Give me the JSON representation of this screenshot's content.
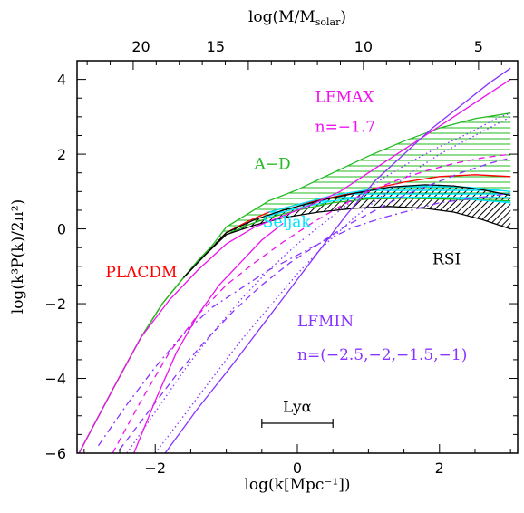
{
  "chart_data": {
    "type": "line",
    "xlabel": "log(k[Mpc⁻¹])",
    "ylabel": "log(k³P(k)/2π²)",
    "top_xlabel": "log(M/M_solar)",
    "xlim": [
      -3.1,
      3.1
    ],
    "ylim": [
      -6,
      4.5
    ],
    "x_ticks": [
      -2,
      0,
      2
    ],
    "y_ticks": [
      -6,
      -4,
      -2,
      0,
      2,
      4
    ],
    "top_ticks": [
      {
        "label": "20",
        "x": -2.2
      },
      {
        "label": "15",
        "x": -1.15
      },
      {
        "label": "10",
        "x": 0.93
      },
      {
        "label": "5",
        "x": 2.55
      }
    ],
    "grid": false,
    "colors": {
      "red": "#ff0000",
      "green": "#22bb22",
      "magenta": "#ee11ee",
      "purple": "#8833ff",
      "brown": "#bb4400",
      "cyan": "#00e5ff",
      "black": "#000000"
    },
    "annotations": [
      {
        "id": "plcdm",
        "text": "PLΛCDM",
        "color": "red"
      },
      {
        "id": "ad",
        "text": "A−D",
        "color": "green"
      },
      {
        "id": "lfmax",
        "text": "LFMAX",
        "color": "magenta"
      },
      {
        "id": "lfmax_n",
        "text": "n=−1.7",
        "color": "magenta"
      },
      {
        "id": "seljak",
        "text": "Seljak",
        "color": "cyan"
      },
      {
        "id": "rsi",
        "text": "RSI",
        "color": "black"
      },
      {
        "id": "lfmin",
        "text": "LFMIN",
        "color": "purple"
      },
      {
        "id": "lfmin_n",
        "text": "n=(−2.5,−2,−1.5,−1)",
        "color": "purple"
      },
      {
        "id": "lya",
        "text": "Lyα",
        "color": "black"
      }
    ],
    "lya_range": [
      -0.5,
      0.5,
      -5.2
    ],
    "series": [
      {
        "id": "plcdm_red",
        "color": "red",
        "style": "solid",
        "x": [
          -3.1,
          -2.6,
          -2.2,
          -1.9,
          -1.6,
          -1.4,
          -1.2,
          -1.0,
          -0.7,
          -0.4,
          0,
          0.5,
          1.0,
          1.5,
          2.0,
          2.5,
          3.0
        ],
        "y": [
          -6.1,
          -4.3,
          -2.9,
          -2.0,
          -1.3,
          -0.85,
          -0.5,
          -0.1,
          0.2,
          0.45,
          0.65,
          0.85,
          1.05,
          1.25,
          1.4,
          1.45,
          1.4
        ]
      },
      {
        "id": "ad_upper",
        "color": "green",
        "style": "solid",
        "x": [
          -3.1,
          -2.6,
          -2.2,
          -1.9,
          -1.6,
          -1.4,
          -1.2,
          -1.0,
          -0.7,
          -0.4,
          0,
          0.5,
          1.0,
          1.5,
          2.0,
          2.5,
          3.0
        ],
        "y": [
          -6.1,
          -4.3,
          -2.9,
          -2.0,
          -1.3,
          -0.85,
          -0.45,
          0.05,
          0.4,
          0.75,
          1.05,
          1.5,
          1.95,
          2.35,
          2.7,
          2.95,
          3.1
        ]
      },
      {
        "id": "ad_lower",
        "color": "green",
        "style": "solid",
        "x": [
          -3.1,
          -2.6,
          -2.2,
          -1.9,
          -1.6,
          -1.4,
          -1.2,
          -1.0,
          -0.7,
          -0.4,
          0,
          0.5,
          1.0,
          1.5,
          2.0,
          2.5,
          3.0
        ],
        "y": [
          -6.1,
          -4.3,
          -2.9,
          -2.0,
          -1.3,
          -0.85,
          -0.5,
          -0.15,
          0.1,
          0.3,
          0.5,
          0.7,
          0.8,
          0.82,
          0.8,
          0.78,
          0.75
        ]
      },
      {
        "id": "seljak_upper",
        "color": "cyan",
        "style": "solid",
        "x": [
          -0.4,
          0,
          0.5,
          1.0,
          1.5,
          2.0,
          2.5,
          3.0
        ],
        "y": [
          0.45,
          0.65,
          0.9,
          1.05,
          1.15,
          1.17,
          1.1,
          1.0
        ]
      },
      {
        "id": "seljak_lower",
        "color": "cyan",
        "style": "solid",
        "x": [
          -0.4,
          0,
          0.5,
          1.0,
          1.5,
          2.0,
          2.5,
          3.0
        ],
        "y": [
          0.35,
          0.55,
          0.75,
          0.85,
          0.85,
          0.85,
          0.78,
          0.7
        ]
      },
      {
        "id": "rsi_upper",
        "color": "black",
        "style": "solid",
        "x": [
          -1.6,
          -1.3,
          -1.0,
          -0.6,
          -0.2,
          0.3,
          0.8,
          1.3,
          1.8,
          2.2,
          2.6,
          3.0
        ],
        "y": [
          -1.3,
          -0.7,
          -0.1,
          0.25,
          0.5,
          0.75,
          0.95,
          1.12,
          1.18,
          1.15,
          1.05,
          0.9
        ]
      },
      {
        "id": "rsi_lower",
        "color": "black",
        "style": "solid",
        "x": [
          -1.6,
          -1.3,
          -1.0,
          -0.6,
          -0.2,
          0.3,
          0.8,
          1.3,
          1.8,
          2.2,
          2.6,
          3.0
        ],
        "y": [
          -1.3,
          -0.7,
          -0.15,
          0.1,
          0.3,
          0.45,
          0.55,
          0.6,
          0.55,
          0.45,
          0.25,
          0.0
        ]
      },
      {
        "id": "lfmax_solid",
        "color": "magenta",
        "style": "solid",
        "x": [
          -3.1,
          -2.6,
          -2.2,
          -1.8,
          -1.4,
          -1.0,
          -0.6,
          -0.2,
          0.2,
          0.6,
          1.0,
          1.4,
          1.8,
          2.2,
          2.6,
          3.0
        ],
        "y": [
          -6.1,
          -4.3,
          -2.9,
          -1.9,
          -1.1,
          -0.4,
          0.05,
          0.35,
          0.65,
          1.0,
          1.5,
          2.0,
          2.5,
          3.0,
          3.5,
          4.0
        ]
      },
      {
        "id": "lfmax_dotted",
        "color": "purple",
        "style": "dotted",
        "x": [
          -2.4,
          -2.0,
          -1.6,
          -1.2,
          -0.8,
          -0.4,
          0,
          0.4,
          0.8,
          1.2,
          1.6,
          2.0,
          2.4,
          2.8,
          3.0
        ],
        "y": [
          -6.0,
          -4.9,
          -3.8,
          -2.8,
          -1.9,
          -1.1,
          -0.4,
          0.2,
          0.8,
          1.35,
          1.8,
          2.2,
          2.55,
          2.95,
          3.1
        ]
      },
      {
        "id": "lfmin_solid",
        "color": "purple",
        "style": "solid",
        "x": [
          -1.9,
          -1.4,
          -0.9,
          -0.5,
          -0.1,
          0.3,
          0.7,
          1.1,
          1.5,
          1.9,
          2.3,
          2.7,
          3.0
        ],
        "y": [
          -6.1,
          -4.8,
          -3.6,
          -2.6,
          -1.6,
          -0.6,
          0.4,
          1.3,
          2.0,
          2.7,
          3.3,
          3.9,
          4.3
        ]
      },
      {
        "id": "lfmin_dotted",
        "color": "purple",
        "style": "dotted",
        "x": [
          -2.0,
          -1.6,
          -1.2,
          -0.8,
          -0.4,
          0,
          0.4,
          0.8,
          1.2,
          1.6,
          2.0,
          2.4,
          2.8,
          3.0
        ],
        "y": [
          -6.0,
          -5.0,
          -4.0,
          -3.0,
          -2.1,
          -1.2,
          -0.4,
          0.3,
          0.9,
          1.5,
          2.0,
          2.4,
          2.8,
          3.0
        ]
      },
      {
        "id": "lfmin_dashed",
        "color": "purple",
        "style": "dashed",
        "x": [
          -2.5,
          -2.1,
          -1.7,
          -1.3,
          -0.9,
          -0.5,
          -0.1,
          0.3,
          0.7,
          1.1,
          1.5,
          1.9,
          2.3,
          2.7,
          3.0
        ],
        "y": [
          -5.9,
          -4.9,
          -3.9,
          -3.0,
          -2.2,
          -1.5,
          -0.9,
          -0.4,
          0.1,
          0.5,
          0.9,
          1.2,
          1.5,
          1.75,
          1.9
        ]
      },
      {
        "id": "lfmin_dashdot",
        "color": "purple",
        "style": "dashdot",
        "x": [
          -2.8,
          -2.4,
          -2.0,
          -1.6,
          -1.2,
          -0.8,
          -0.4,
          0,
          0.4,
          0.8,
          1.2,
          1.6,
          2.0,
          2.4,
          2.8,
          3.0
        ],
        "y": [
          -5.8,
          -4.7,
          -3.7,
          -2.8,
          -2.1,
          -1.6,
          -1.1,
          -0.7,
          -0.3,
          0.05,
          0.3,
          0.5,
          0.7,
          0.8,
          0.9,
          0.95
        ]
      },
      {
        "id": "lfmax_dashed",
        "color": "magenta",
        "style": "dashed",
        "x": [
          -2.6,
          -2.2,
          -1.8,
          -1.4,
          -1.0,
          -0.6,
          -0.2,
          0.2,
          0.6,
          1.0,
          1.4,
          1.8,
          2.2,
          2.6,
          3.0
        ],
        "y": [
          -6.0,
          -4.6,
          -3.3,
          -2.3,
          -1.5,
          -0.9,
          -0.35,
          0.15,
          0.6,
          1.0,
          1.3,
          1.55,
          1.75,
          1.9,
          2.0
        ]
      },
      {
        "id": "lfmax_solid2",
        "color": "magenta",
        "style": "solid",
        "x": [
          -2.3,
          -2.0,
          -1.7,
          -1.4,
          -1.1,
          -0.8,
          -0.5,
          -0.2
        ],
        "y": [
          -6.0,
          -4.6,
          -3.3,
          -2.3,
          -1.5,
          -0.9,
          -0.3,
          0.15
        ]
      }
    ]
  }
}
